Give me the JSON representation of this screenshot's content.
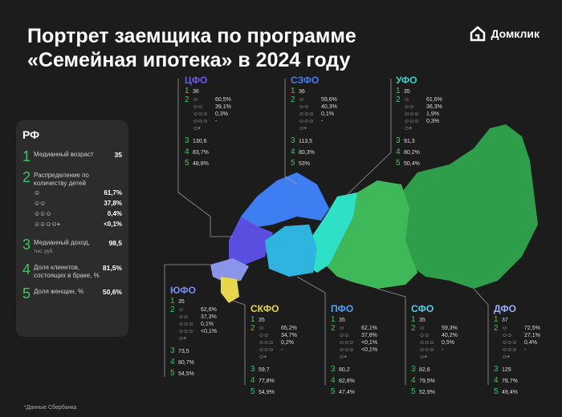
{
  "title_line1": "Портрет заемщика по программе",
  "title_line2": "«Семейная ипотека» в 2024 году",
  "logo_text": "Домклик",
  "rf": {
    "title": "РФ",
    "age_label": "Медианный возраст",
    "age_value": "35",
    "kids_label": "Распределение по количеству детей",
    "kids": [
      "61,7%",
      "37,8%",
      "0,4%",
      "<0,1%"
    ],
    "income_label": "Медианный доход,",
    "income_unit": "тыс. руб.",
    "income_value": "98,5",
    "married_label": "Доля клиентов, состоящих в браке, %",
    "married_value": "81,5%",
    "women_label": "Доля женщин, %",
    "women_value": "50,6%"
  },
  "regions": [
    {
      "name": "ЦФО",
      "color": "#6a5cf0",
      "age": "36",
      "kids": [
        "60,5%",
        "39,1%",
        "0,3%",
        "-"
      ],
      "income": "130,6",
      "married": "83,7%",
      "women": "48,8%"
    },
    {
      "name": "СЗФО",
      "color": "#3f7df0",
      "age": "36",
      "kids": [
        "59,6%",
        "40,3%",
        "0,1%",
        "-"
      ],
      "income": "113,5",
      "married": "80,3%",
      "women": "53%"
    },
    {
      "name": "УФО",
      "color": "#2fd6c8",
      "age": "35",
      "kids": [
        "61,6%",
        "36,3%",
        "1,9%",
        "0,3%"
      ],
      "income": "91,3",
      "married": "80,2%",
      "women": "50,4%"
    },
    {
      "name": "ЮФО",
      "color": "#7b8cf2",
      "age": "35",
      "kids": [
        "62,6%",
        "37,3%",
        "0,1%",
        "<0,1%"
      ],
      "income": "73,5",
      "married": "80,7%",
      "women": "54,5%"
    },
    {
      "name": "СКФО",
      "color": "#e8d44a",
      "age": "35",
      "kids": [
        "65,2%",
        "34,7%",
        "0,2%",
        "-"
      ],
      "income": "59,7",
      "married": "77,8%",
      "women": "54,9%"
    },
    {
      "name": "ПФО",
      "color": "#4aa3f5",
      "age": "35",
      "kids": [
        "62,1%",
        "37,8%",
        "<0,1%",
        "<0,1%"
      ],
      "income": "80,2",
      "married": "82,8%",
      "women": "47,4%"
    },
    {
      "name": "СФО",
      "color": "#5ad0f0",
      "age": "35",
      "kids": [
        "59,3%",
        "40,2%",
        "0,5%",
        "-"
      ],
      "income": "82,6",
      "married": "79,5%",
      "women": "52,9%"
    },
    {
      "name": "ДФО",
      "color": "#9fb0ff",
      "age": "37",
      "kids": [
        "72,5%",
        "27,1%",
        "0,4%",
        "-"
      ],
      "income": "125",
      "married": "78,7%",
      "women": "49,4%"
    }
  ],
  "footnote": "*Данные Сбербанка",
  "kid_icons": [
    "☺",
    "☺☺",
    "☺☺☺",
    "☺☺☺☺+"
  ]
}
